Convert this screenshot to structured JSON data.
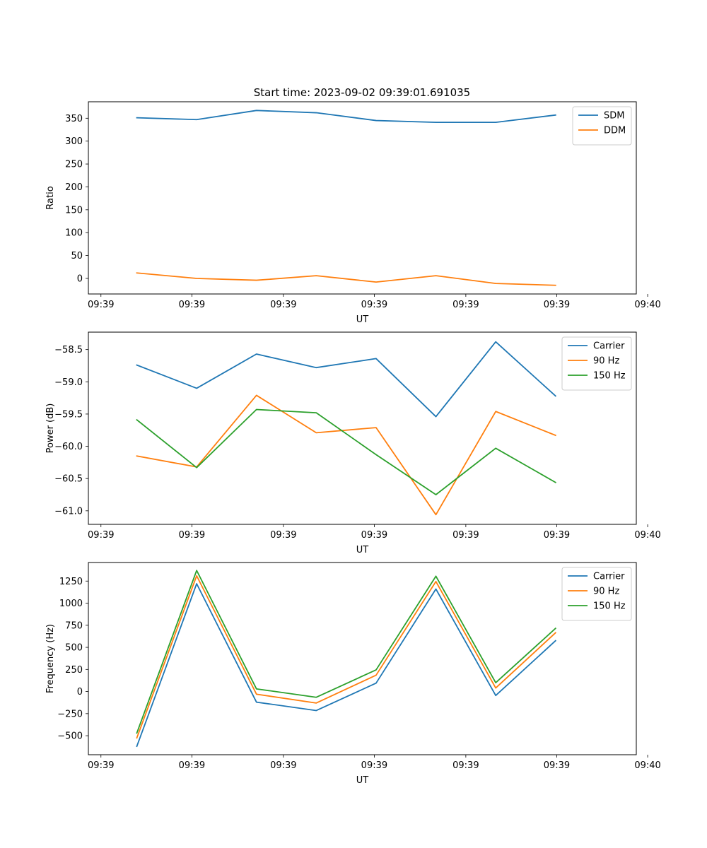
{
  "title": "Start time: 2023-09-02 09:39:01.691035",
  "colors": {
    "blue": "#1f77b4",
    "orange": "#ff7f0e",
    "green": "#2ca02c"
  },
  "chart_data": [
    {
      "type": "line",
      "id": "ratio",
      "xlabel": "UT",
      "ylabel": "Ratio",
      "x": [
        1,
        2,
        3,
        4,
        5,
        6,
        7,
        8
      ],
      "xlim": [
        0.19,
        9.35
      ],
      "x_ticks": [
        0.4,
        1.92,
        3.45,
        4.97,
        6.5,
        8.02,
        9.54
      ],
      "x_tick_labels": [
        "09:39",
        "09:39",
        "09:39",
        "09:39",
        "09:39",
        "09:39",
        "09:40"
      ],
      "ylim": [
        -34,
        386
      ],
      "y_ticks": [
        0,
        50,
        100,
        150,
        200,
        250,
        300,
        350
      ],
      "legend": "top-right",
      "series": [
        {
          "name": "SDM",
          "color": "#1f77b4",
          "values": [
            351,
            347,
            367,
            362,
            345,
            341,
            341,
            357
          ]
        },
        {
          "name": "DDM",
          "color": "#ff7f0e",
          "values": [
            12,
            0,
            -4,
            6,
            -8,
            6,
            -11,
            -15
          ]
        }
      ]
    },
    {
      "type": "line",
      "id": "power",
      "xlabel": "UT",
      "ylabel": "Power (dB)",
      "x": [
        1,
        2,
        3,
        4,
        5,
        6,
        7,
        8
      ],
      "xlim": [
        0.19,
        9.35
      ],
      "x_ticks": [
        0.4,
        1.92,
        3.45,
        4.97,
        6.5,
        8.02,
        9.54
      ],
      "x_tick_labels": [
        "09:39",
        "09:39",
        "09:39",
        "09:39",
        "09:39",
        "09:39",
        "09:40"
      ],
      "ylim": [
        -61.21,
        -58.23
      ],
      "y_ticks": [
        -61.0,
        -60.5,
        -60.0,
        -59.5,
        -59.0,
        -58.5
      ],
      "y_tick_labels": [
        "−61.0",
        "−60.5",
        "−60.0",
        "−59.5",
        "−59.0",
        "−58.5"
      ],
      "legend": "top-right",
      "series": [
        {
          "name": "Carrier",
          "color": "#1f77b4",
          "values": [
            -58.74,
            -59.1,
            -58.57,
            -58.78,
            -58.64,
            -59.54,
            -58.38,
            -59.22
          ]
        },
        {
          "name": "90 Hz",
          "color": "#ff7f0e",
          "values": [
            -60.15,
            -60.32,
            -59.21,
            -59.79,
            -59.71,
            -61.06,
            -59.46,
            -59.83
          ]
        },
        {
          "name": "150 Hz",
          "color": "#2ca02c",
          "values": [
            -59.59,
            -60.33,
            -59.43,
            -59.48,
            -60.13,
            -60.75,
            -60.03,
            -60.56
          ]
        }
      ]
    },
    {
      "type": "line",
      "id": "frequency",
      "xlabel": "UT",
      "ylabel": "Frequency (Hz)",
      "x": [
        1,
        2,
        3,
        4,
        5,
        6,
        7,
        8
      ],
      "xlim": [
        0.19,
        9.35
      ],
      "x_ticks": [
        0.4,
        1.92,
        3.45,
        4.97,
        6.5,
        8.02,
        9.54
      ],
      "x_tick_labels": [
        "09:39",
        "09:39",
        "09:39",
        "09:39",
        "09:39",
        "09:39",
        "09:40"
      ],
      "ylim": [
        -715,
        1460
      ],
      "y_ticks": [
        -500,
        -250,
        0,
        250,
        500,
        750,
        1000,
        1250
      ],
      "y_tick_labels": [
        "−500",
        "−250",
        "0",
        "250",
        "500",
        "750",
        "1000",
        "1250"
      ],
      "legend": "top-right",
      "series": [
        {
          "name": "Carrier",
          "color": "#1f77b4",
          "values": [
            -620,
            1220,
            -120,
            -215,
            95,
            1160,
            -45,
            575
          ]
        },
        {
          "name": "90 Hz",
          "color": "#ff7f0e",
          "values": [
            -525,
            1310,
            -30,
            -130,
            185,
            1245,
            40,
            665
          ]
        },
        {
          "name": "150 Hz",
          "color": "#2ca02c",
          "values": [
            -470,
            1370,
            30,
            -65,
            245,
            1305,
            100,
            715
          ]
        }
      ]
    }
  ]
}
